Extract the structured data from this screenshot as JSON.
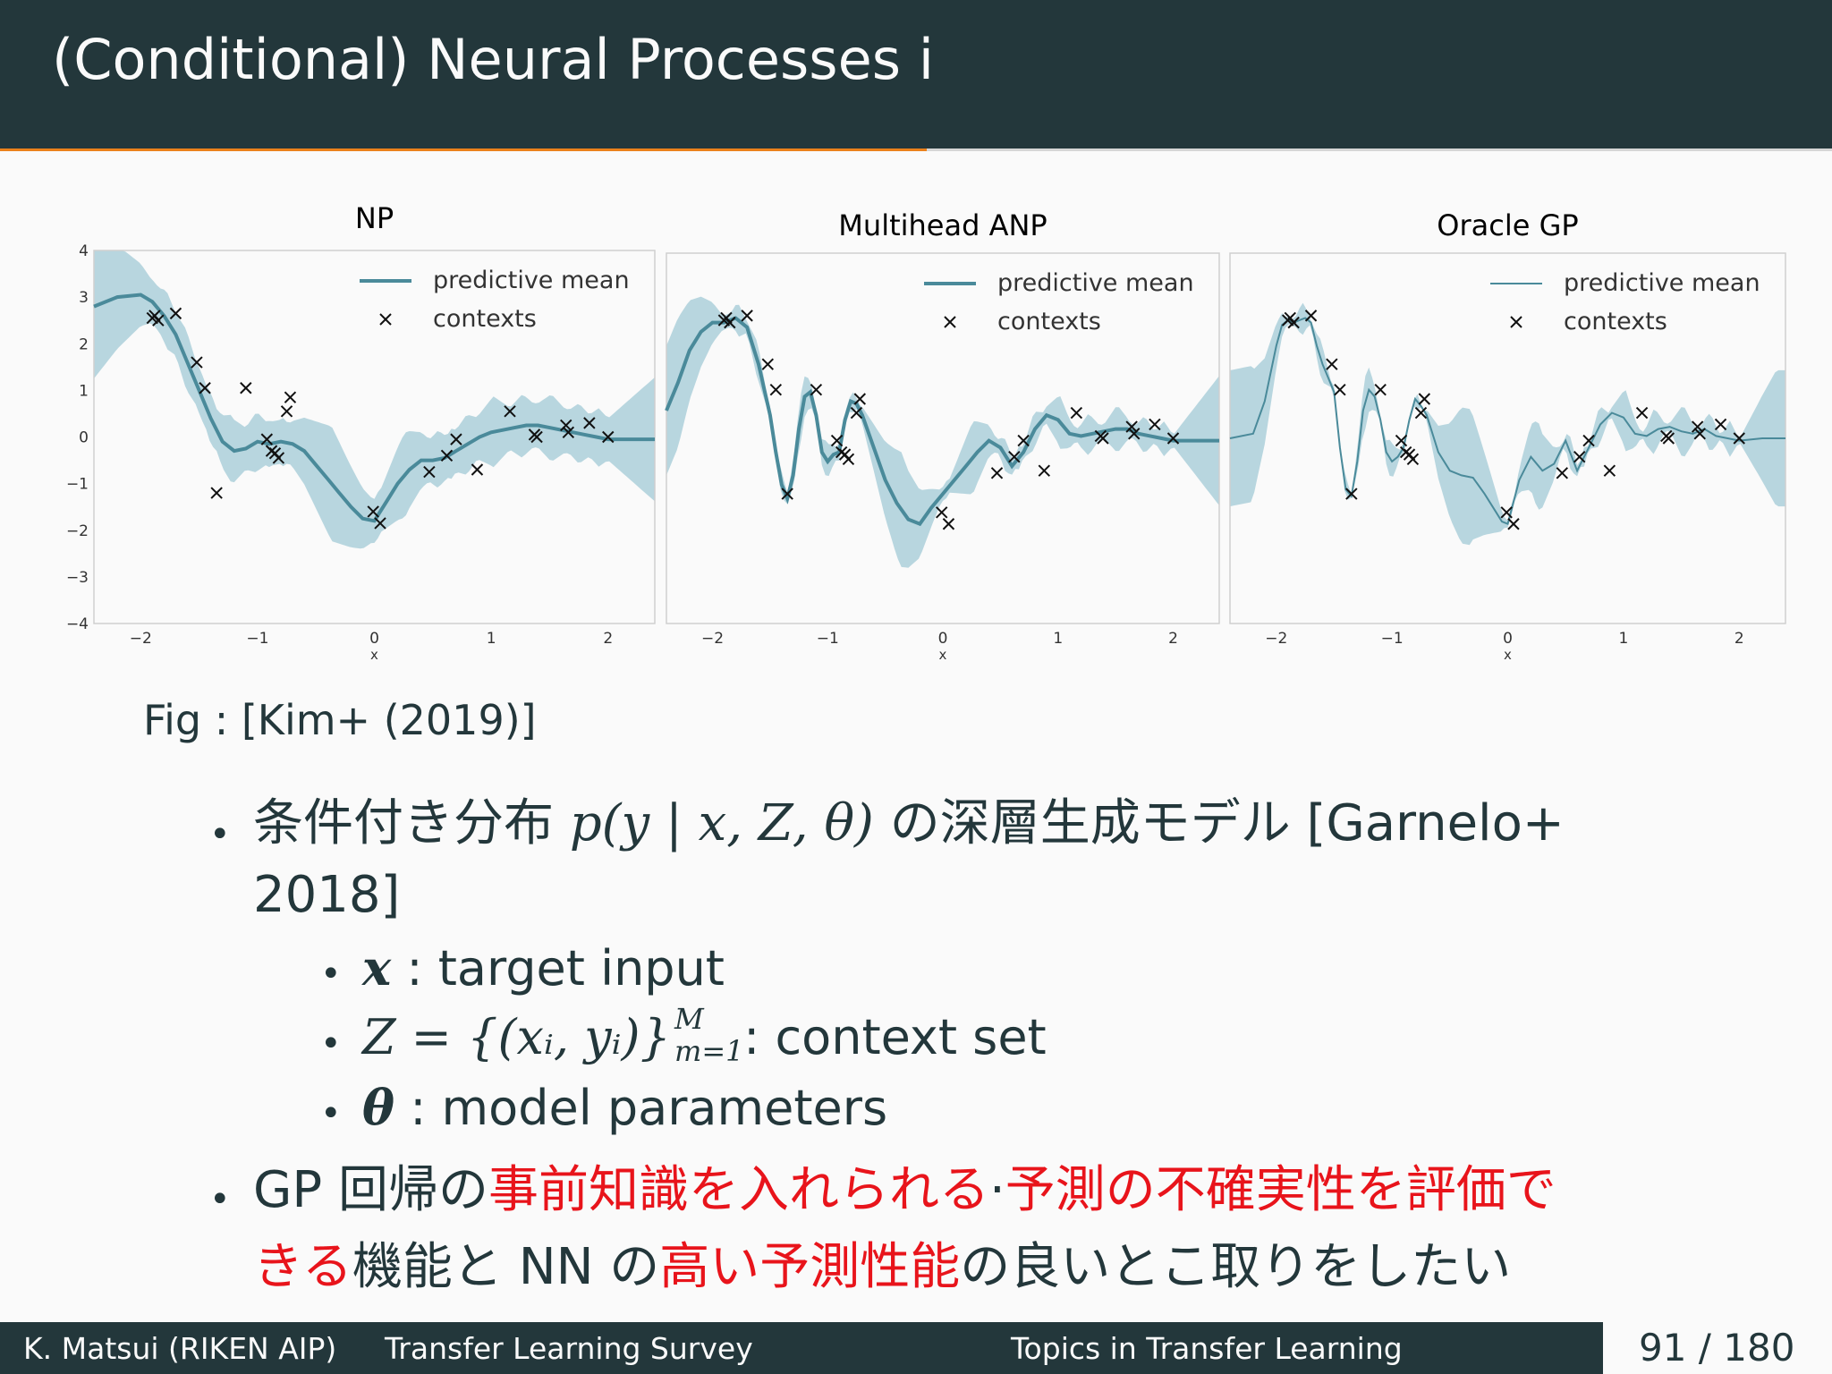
{
  "slide": {
    "title": "(Conditional) Neural Processes i",
    "progress_fraction": 0.506
  },
  "figure": {
    "caption": "Fig : [Kim+ (2019)]",
    "legend": {
      "mean": "predictive mean",
      "contexts": "contexts"
    }
  },
  "chart_data": [
    {
      "type": "line",
      "title": "NP",
      "xlabel": "x",
      "ylabel": "",
      "xlim": [
        -2.4,
        2.4
      ],
      "ylim": [
        -4,
        4
      ],
      "xticks": [
        "−2",
        "−1",
        "0",
        "1",
        "2"
      ],
      "yticks": [
        "4",
        "3",
        "2",
        "1",
        "0",
        "−1",
        "−2",
        "−3",
        "−4"
      ],
      "series": [
        {
          "name": "predictive mean",
          "x": [
            -2.4,
            -2.2,
            -2.0,
            -1.9,
            -1.8,
            -1.7,
            -1.6,
            -1.5,
            -1.4,
            -1.3,
            -1.2,
            -1.1,
            -1.0,
            -0.9,
            -0.8,
            -0.7,
            -0.6,
            -0.5,
            -0.4,
            -0.3,
            -0.2,
            -0.1,
            0.0,
            0.1,
            0.2,
            0.3,
            0.4,
            0.5,
            0.6,
            0.7,
            0.8,
            0.9,
            1.0,
            1.1,
            1.2,
            1.3,
            1.4,
            1.5,
            1.6,
            1.7,
            1.8,
            1.9,
            2.0,
            2.2,
            2.4
          ],
          "y": [
            2.8,
            3.0,
            3.05,
            2.9,
            2.6,
            2.2,
            1.6,
            1.0,
            0.4,
            -0.1,
            -0.3,
            -0.25,
            -0.1,
            -0.15,
            -0.1,
            -0.15,
            -0.3,
            -0.6,
            -0.9,
            -1.2,
            -1.5,
            -1.75,
            -1.8,
            -1.4,
            -1.0,
            -0.7,
            -0.5,
            -0.5,
            -0.45,
            -0.3,
            -0.15,
            0.0,
            0.1,
            0.15,
            0.2,
            0.25,
            0.25,
            0.2,
            0.15,
            0.1,
            0.05,
            0.0,
            -0.05,
            -0.05,
            -0.05
          ]
        },
        {
          "name": "contexts",
          "type": "scatter",
          "x": [
            -1.9,
            -1.88,
            -1.85,
            -1.7,
            -1.52,
            -1.45,
            -1.35,
            -1.1,
            -0.92,
            -0.88,
            -0.85,
            -0.82,
            -0.75,
            -0.72,
            -0.01,
            0.05,
            0.47,
            0.62,
            0.7,
            0.88,
            1.16,
            1.37,
            1.39,
            1.64,
            1.66,
            1.84,
            2.0
          ],
          "y": [
            2.55,
            2.6,
            2.5,
            2.65,
            1.6,
            1.05,
            -1.2,
            1.05,
            -0.05,
            -0.3,
            -0.35,
            -0.45,
            0.55,
            0.85,
            -1.6,
            -1.85,
            -0.75,
            -0.4,
            -0.05,
            -0.7,
            0.55,
            0.05,
            0.0,
            0.25,
            0.1,
            0.3,
            0.0
          ]
        }
      ]
    },
    {
      "type": "line",
      "title": "Multihead ANP",
      "xlabel": "x",
      "ylabel": "",
      "xlim": [
        -2.4,
        2.4
      ],
      "ylim": [
        -4,
        4
      ],
      "xticks": [
        "−2",
        "−1",
        "0",
        "1",
        "2"
      ],
      "series": [
        {
          "name": "predictive mean",
          "x": [
            -2.4,
            -2.3,
            -2.2,
            -2.1,
            -2.0,
            -1.9,
            -1.8,
            -1.7,
            -1.6,
            -1.5,
            -1.45,
            -1.4,
            -1.35,
            -1.3,
            -1.25,
            -1.2,
            -1.15,
            -1.1,
            -1.05,
            -1.0,
            -0.95,
            -0.9,
            -0.85,
            -0.8,
            -0.75,
            -0.7,
            -0.6,
            -0.5,
            -0.4,
            -0.3,
            -0.2,
            -0.1,
            0.0,
            0.1,
            0.2,
            0.3,
            0.4,
            0.5,
            0.6,
            0.7,
            0.8,
            0.9,
            1.0,
            1.1,
            1.2,
            1.3,
            1.4,
            1.5,
            1.6,
            1.7,
            1.8,
            1.9,
            2.0,
            2.2,
            2.4
          ],
          "y": [
            0.6,
            1.2,
            1.9,
            2.3,
            2.5,
            2.5,
            2.6,
            2.4,
            1.6,
            0.5,
            -0.3,
            -1.0,
            -1.3,
            -0.8,
            0.2,
            0.9,
            1.0,
            0.5,
            -0.3,
            -0.5,
            -0.35,
            -0.3,
            0.4,
            0.8,
            0.75,
            0.5,
            -0.2,
            -0.9,
            -1.4,
            -1.75,
            -1.85,
            -1.5,
            -1.2,
            -0.9,
            -0.6,
            -0.3,
            -0.05,
            -0.2,
            -0.6,
            -0.3,
            0.2,
            0.5,
            0.4,
            0.1,
            0.05,
            0.1,
            0.15,
            0.2,
            0.2,
            0.1,
            0.05,
            0.0,
            -0.05,
            -0.05,
            -0.05
          ]
        },
        {
          "name": "contexts",
          "type": "scatter",
          "x": [
            -1.9,
            -1.88,
            -1.85,
            -1.7,
            -1.52,
            -1.45,
            -1.35,
            -1.1,
            -0.92,
            -0.88,
            -0.85,
            -0.82,
            -0.75,
            -0.72,
            -0.01,
            0.05,
            0.47,
            0.62,
            0.7,
            0.88,
            1.16,
            1.37,
            1.39,
            1.64,
            1.66,
            1.84,
            2.0
          ],
          "y": [
            2.55,
            2.6,
            2.5,
            2.65,
            1.6,
            1.05,
            -1.2,
            1.05,
            -0.05,
            -0.3,
            -0.35,
            -0.45,
            0.55,
            0.85,
            -1.6,
            -1.85,
            -0.75,
            -0.4,
            -0.05,
            -0.7,
            0.55,
            0.05,
            0.0,
            0.25,
            0.1,
            0.3,
            0.0
          ]
        }
      ]
    },
    {
      "type": "line",
      "title": "Oracle GP",
      "xlabel": "x",
      "ylabel": "",
      "xlim": [
        -2.4,
        2.4
      ],
      "ylim": [
        -4,
        4
      ],
      "xticks": [
        "−2",
        "−1",
        "0",
        "1",
        "2"
      ],
      "series": [
        {
          "name": "predictive mean",
          "x": [
            -2.4,
            -2.2,
            -2.1,
            -2.0,
            -1.95,
            -1.9,
            -1.85,
            -1.8,
            -1.75,
            -1.7,
            -1.65,
            -1.6,
            -1.55,
            -1.5,
            -1.45,
            -1.4,
            -1.35,
            -1.3,
            -1.25,
            -1.2,
            -1.15,
            -1.1,
            -1.05,
            -1.0,
            -0.95,
            -0.9,
            -0.85,
            -0.8,
            -0.75,
            -0.7,
            -0.6,
            -0.5,
            -0.4,
            -0.3,
            -0.2,
            -0.1,
            -0.05,
            0.0,
            0.1,
            0.2,
            0.3,
            0.4,
            0.5,
            0.6,
            0.7,
            0.8,
            0.9,
            1.0,
            1.1,
            1.2,
            1.3,
            1.4,
            1.5,
            1.6,
            1.7,
            1.8,
            1.9,
            2.0,
            2.2,
            2.4
          ],
          "y": [
            0.0,
            0.1,
            0.8,
            2.0,
            2.45,
            2.55,
            2.5,
            2.55,
            2.6,
            2.5,
            2.0,
            1.6,
            1.3,
            1.0,
            -0.2,
            -1.1,
            -1.25,
            -0.5,
            0.6,
            1.05,
            0.9,
            0.4,
            -0.3,
            -0.5,
            -0.4,
            -0.2,
            0.4,
            0.85,
            0.7,
            0.5,
            -0.3,
            -0.7,
            -0.8,
            -0.85,
            -1.2,
            -1.6,
            -1.8,
            -1.85,
            -0.9,
            -0.4,
            -0.7,
            -0.55,
            -0.05,
            -0.7,
            -0.2,
            0.3,
            0.55,
            0.45,
            0.1,
            0.05,
            0.2,
            0.25,
            0.15,
            0.1,
            0.2,
            0.05,
            0.0,
            -0.05,
            0.0,
            0.0
          ]
        },
        {
          "name": "contexts",
          "type": "scatter",
          "x": [
            -1.9,
            -1.88,
            -1.85,
            -1.7,
            -1.52,
            -1.45,
            -1.35,
            -1.1,
            -0.92,
            -0.88,
            -0.85,
            -0.82,
            -0.75,
            -0.72,
            -0.01,
            0.05,
            0.47,
            0.62,
            0.7,
            0.88,
            1.16,
            1.37,
            1.39,
            1.64,
            1.66,
            1.84,
            2.0
          ],
          "y": [
            2.55,
            2.6,
            2.5,
            2.65,
            1.6,
            1.05,
            -1.2,
            1.05,
            -0.05,
            -0.3,
            -0.35,
            -0.45,
            0.55,
            0.85,
            -1.6,
            -1.85,
            -0.75,
            -0.4,
            -0.05,
            -0.7,
            0.55,
            0.05,
            0.0,
            0.25,
            0.1,
            0.3,
            0.0
          ]
        }
      ]
    }
  ],
  "bullets": {
    "b1_prefix": "条件付き分布 ",
    "b1_math": "p(y | x, Z, θ)",
    "b1_suffix": " の深層生成モデル  [Garnelo+",
    "b1_line2": "2018]",
    "sub1_sym": "x",
    "sub1_text": " : target input",
    "sub2_sym": "Z = {(xᵢ, yᵢ)}",
    "sub2_sup": "M",
    "sub2_sub": "m=1",
    "sub2_text": " : context set",
    "sub3_sym": "θ",
    "sub3_text": " : model parameters",
    "b2_a": "GP 回帰の",
    "b2_b": "事前知識を入れられる",
    "b2_c": "·",
    "b2_d": "予測の不確実性を評価で",
    "b2_e": "きる",
    "b2_f": "機能と NN の",
    "b2_g": "高い予測性能",
    "b2_h": "の良いとこ取りをしたい"
  },
  "footer": {
    "author": "K. Matsui (RIKEN AIP)",
    "talk": "Transfer Learning Survey",
    "section": "Topics in Transfer Learning",
    "page": "91 / 180"
  },
  "colors": {
    "header_bg": "#23373b",
    "accent": "#eb811b",
    "band": "#a8cdd8",
    "mean_line": "#4a8a9a",
    "emphasis": "#e8141b"
  }
}
